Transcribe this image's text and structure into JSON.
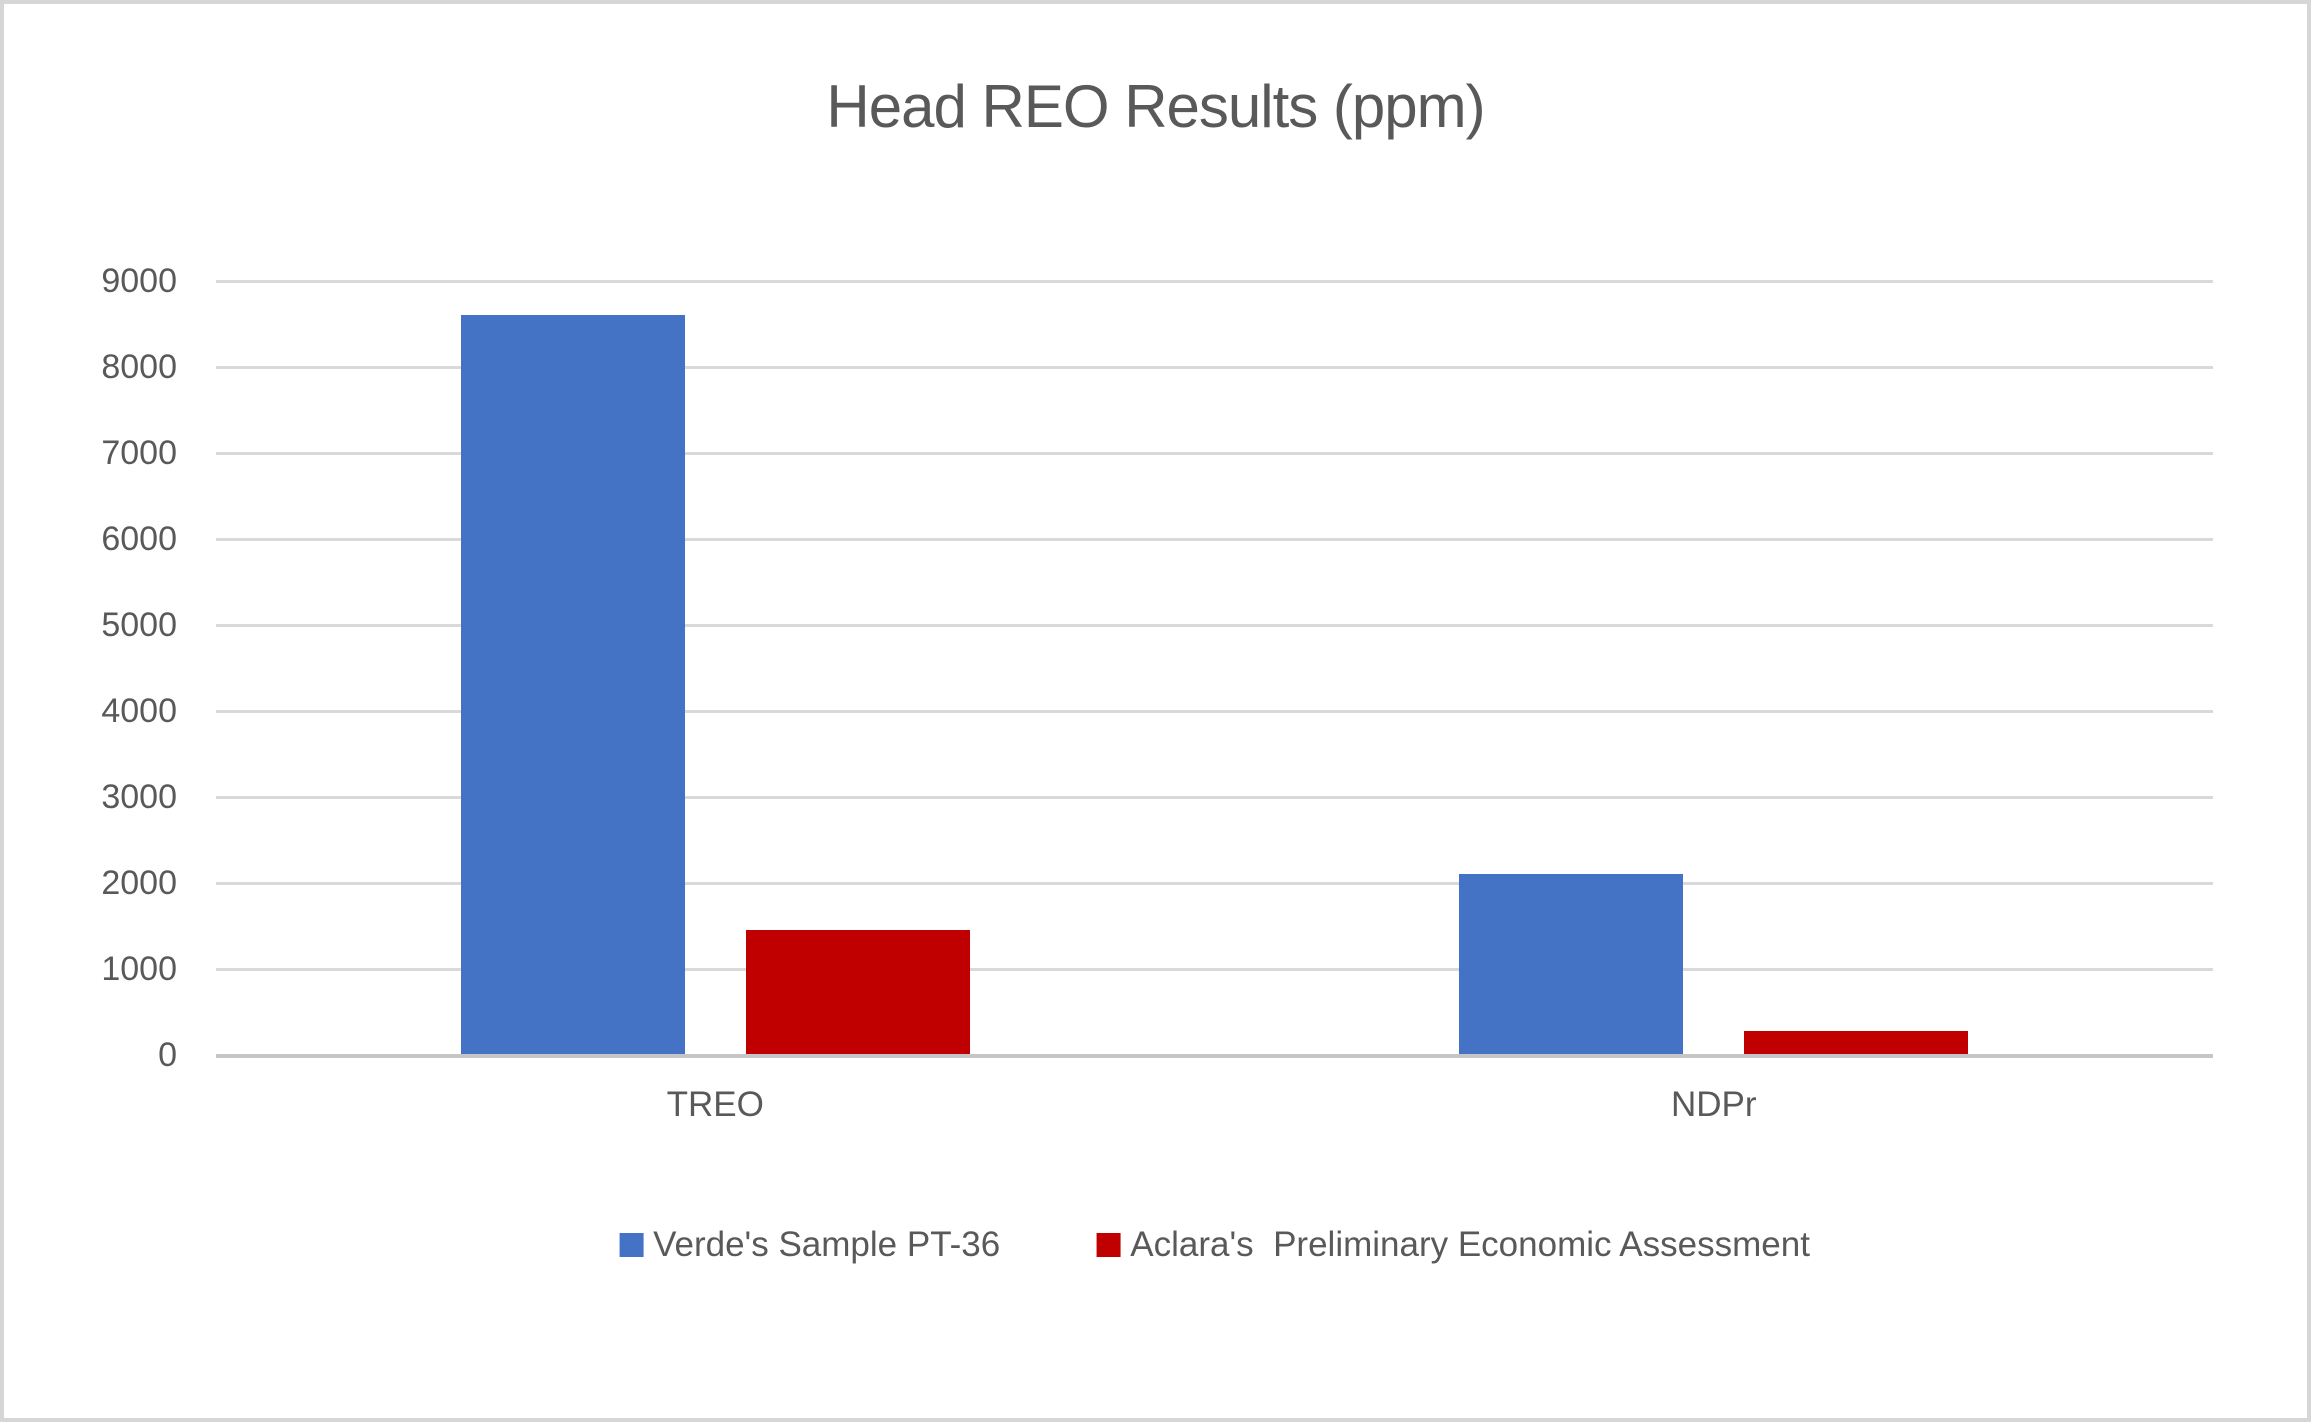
{
  "chart_data": {
    "type": "bar",
    "title": "Head REO Results (ppm)",
    "categories": [
      "TREO",
      "NDPr"
    ],
    "series": [
      {
        "name": "Verde's Sample PT-36",
        "color": "#4472C4",
        "values": [
          8600,
          2100
        ]
      },
      {
        "name": "Aclara's  Preliminary Economic Assessment",
        "color": "#C00000",
        "values": [
          1450,
          280
        ]
      }
    ],
    "xlabel": "",
    "ylabel": "",
    "ylim": [
      0,
      9000
    ],
    "ytick_step": 1000,
    "ytick_labels": [
      "0",
      "1000",
      "2000",
      "3000",
      "4000",
      "5000",
      "6000",
      "7000",
      "8000",
      "9000"
    ],
    "grid": "horizontal",
    "legend_position": "bottom"
  },
  "colors": {
    "title_text": "#595959",
    "axis_text": "#595959",
    "gridline": "#D9D9D9",
    "axis_line": "#C6C6C6",
    "background": "#FFFFFF",
    "canvas_border": "#D6D6D6",
    "series_blue": "#4472C4",
    "series_red": "#C00000"
  }
}
